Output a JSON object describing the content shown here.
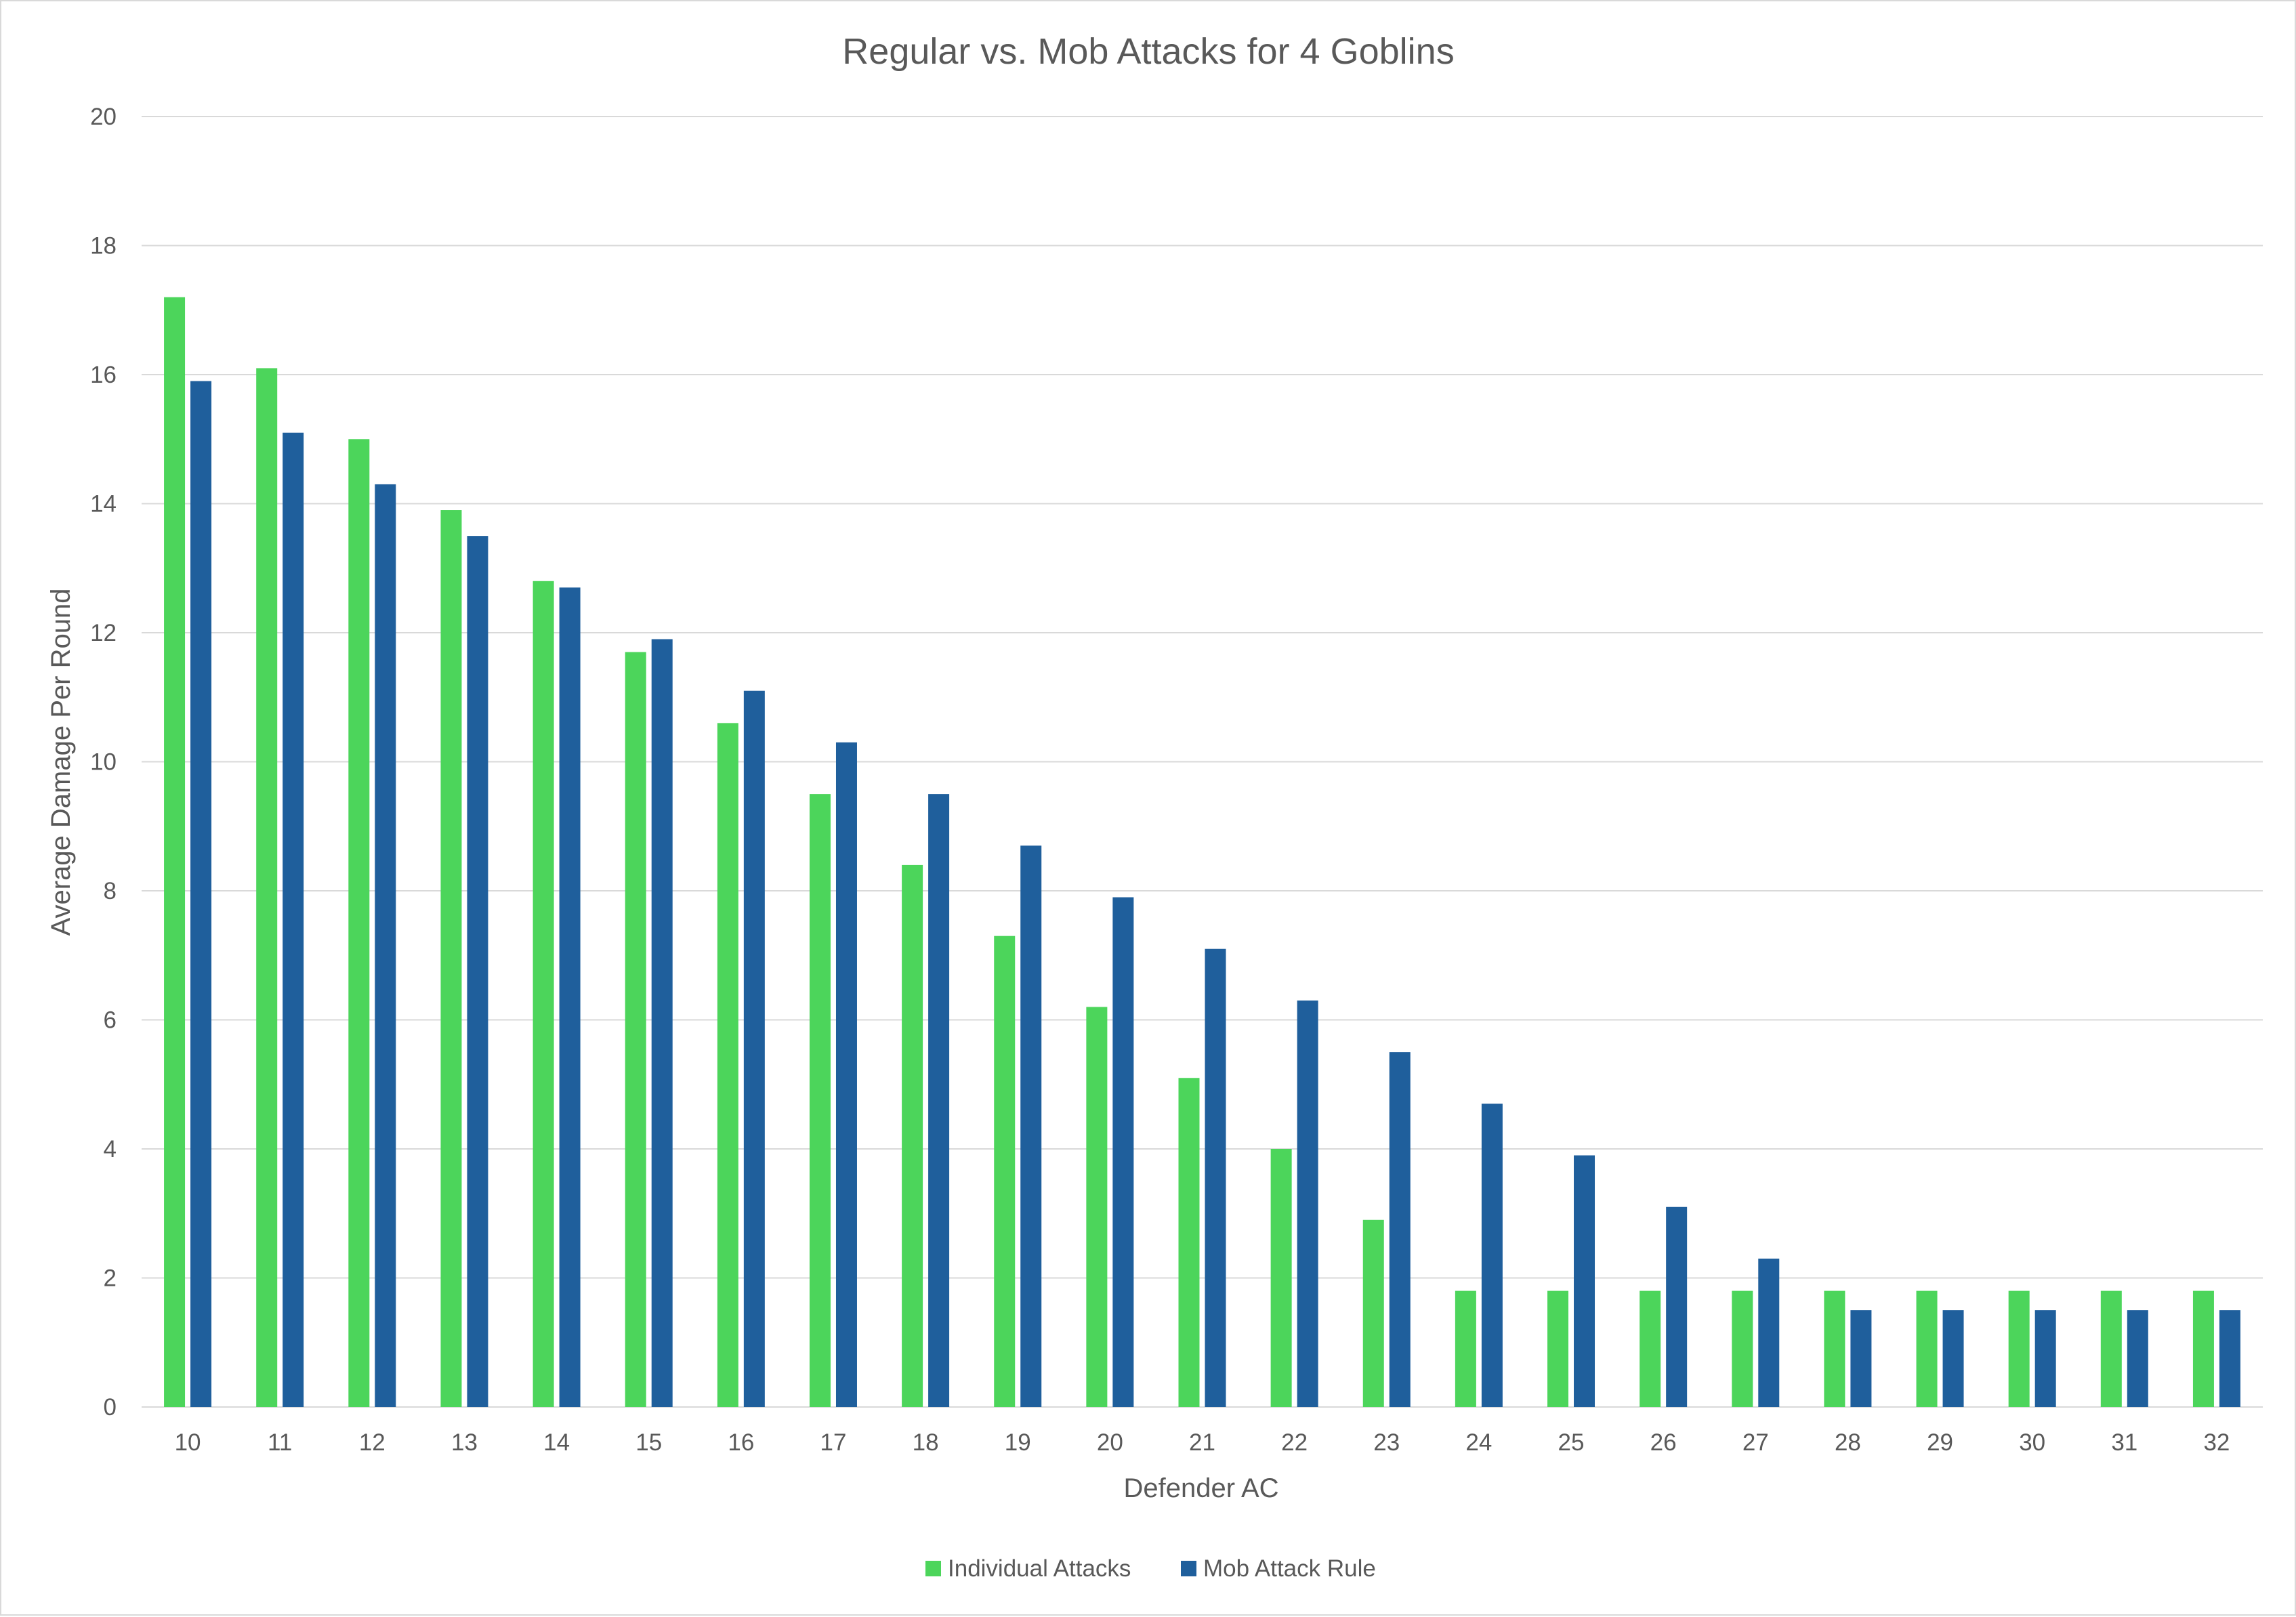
{
  "chart_data": {
    "type": "bar",
    "title": "Regular vs. Mob Attacks for 4 Goblins",
    "xlabel": "Defender AC",
    "ylabel": "Average Damage Per Round",
    "ylim": [
      0,
      20
    ],
    "yticks": [
      "0",
      "2",
      "4",
      "6",
      "8",
      "10",
      "12",
      "14",
      "16",
      "18",
      "20"
    ],
    "grid": true,
    "legend_position": "bottom",
    "categories": [
      "10",
      "11",
      "12",
      "13",
      "14",
      "15",
      "16",
      "17",
      "18",
      "19",
      "20",
      "21",
      "22",
      "23",
      "24",
      "25",
      "26",
      "27",
      "28",
      "29",
      "30",
      "31",
      "32"
    ],
    "series": [
      {
        "name": "Individual Attacks",
        "color": "#4cd55b",
        "values": [
          17.2,
          16.1,
          15.0,
          13.9,
          12.8,
          11.7,
          10.6,
          9.5,
          8.4,
          7.3,
          6.2,
          5.1,
          4.0,
          2.9,
          1.8,
          1.8,
          1.8,
          1.8,
          1.8,
          1.8,
          1.8,
          1.8,
          1.8
        ]
      },
      {
        "name": "Mob Attack Rule",
        "color": "#1f5f9c",
        "values": [
          15.9,
          15.1,
          14.3,
          13.5,
          12.7,
          11.9,
          11.1,
          10.3,
          9.5,
          8.7,
          7.9,
          7.1,
          6.3,
          5.5,
          4.7,
          3.9,
          3.1,
          2.3,
          1.5,
          1.5,
          1.5,
          1.5,
          1.5
        ]
      }
    ]
  }
}
